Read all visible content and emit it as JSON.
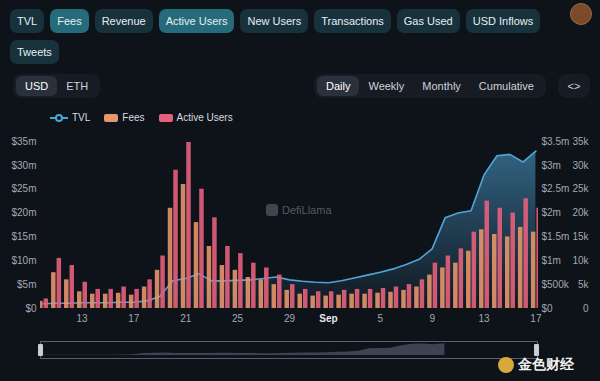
{
  "page": {
    "tabs": [
      {
        "label": "TVL",
        "active": false
      },
      {
        "label": "Fees",
        "active": true
      },
      {
        "label": "Revenue",
        "active": false
      },
      {
        "label": "Active Users",
        "active": true
      },
      {
        "label": "New Users",
        "active": false
      },
      {
        "label": "Transactions",
        "active": false
      },
      {
        "label": "Gas Used",
        "active": false
      },
      {
        "label": "USD Inflows",
        "active": false
      },
      {
        "label": "Tweets",
        "active": false
      }
    ],
    "currency": {
      "options": [
        "USD",
        "ETH"
      ],
      "selected": "USD"
    },
    "period": {
      "options": [
        "Daily",
        "Weekly",
        "Monthly",
        "Cumulative"
      ],
      "selected": "Daily"
    },
    "embed": "<>",
    "watermark": "DefiLlama",
    "source_watermark": "金色财经"
  },
  "chart_data": {
    "type": "combo",
    "legend": "top-left",
    "categories": [
      null,
      null,
      null,
      "13",
      null,
      null,
      null,
      "17",
      null,
      null,
      null,
      "21",
      null,
      null,
      null,
      "25",
      null,
      null,
      null,
      "29",
      null,
      null,
      "Sep",
      null,
      null,
      null,
      "5",
      null,
      null,
      null,
      "9",
      null,
      null,
      null,
      "13",
      null,
      null,
      null,
      "17"
    ],
    "ylim": [
      0,
      35000000
    ],
    "yticks": [
      {
        "value": 0,
        "label": "$0"
      },
      {
        "value": 5000000,
        "label": "$5m"
      },
      {
        "value": 10000000,
        "label": "$10m"
      },
      {
        "value": 15000000,
        "label": "$15m"
      },
      {
        "value": 20000000,
        "label": "$20m"
      },
      {
        "value": 25000000,
        "label": "$25m"
      },
      {
        "value": 30000000,
        "label": "$30m"
      },
      {
        "value": 35000000,
        "label": "$35m"
      }
    ],
    "y2lim": [
      0,
      3500000
    ],
    "y2ticks": [
      {
        "value": 0,
        "label": "$0"
      },
      {
        "value": 500000,
        "label": "$500k"
      },
      {
        "value": 1000000,
        "label": "$1m"
      },
      {
        "value": 1500000,
        "label": "$1.5m"
      },
      {
        "value": 2000000,
        "label": "$2m"
      },
      {
        "value": 2500000,
        "label": "$2.5m"
      },
      {
        "value": 3000000,
        "label": "$3m"
      },
      {
        "value": 3500000,
        "label": "$3.5m"
      }
    ],
    "y3lim": [
      0,
      35000
    ],
    "y3ticks": [
      0,
      {
        "value": 5000,
        "label": "5k"
      },
      {
        "value": 10000,
        "label": "10k"
      },
      {
        "value": 15000,
        "label": "15k"
      },
      {
        "value": 20000,
        "label": "20k"
      },
      {
        "value": 25000,
        "label": "25k"
      },
      {
        "value": 30000,
        "label": "30k"
      },
      {
        "value": 35000,
        "label": "35k"
      }
    ],
    "series": [
      {
        "name": "TVL",
        "type": "area",
        "color": "#4ea4d6",
        "values": [
          1000000,
          1100000,
          1100000,
          1200000,
          1200000,
          1200000,
          1300000,
          1300000,
          1600000,
          2500000,
          5800000,
          6300000,
          7300000,
          5800000,
          5800000,
          5900000,
          6000000,
          6300000,
          6600000,
          6000000,
          5700000,
          5500000,
          5400000,
          5800000,
          6400000,
          7000000,
          7600000,
          8300000,
          9200000,
          10300000,
          12500000,
          19000000,
          20000000,
          20500000,
          28000000,
          32000000,
          32300000,
          30700000,
          33000000
        ]
      },
      {
        "name": "Fees",
        "type": "bar",
        "axis": "y2",
        "color": "#e4966c",
        "values": [
          150000,
          750000,
          600000,
          350000,
          300000,
          300000,
          320000,
          280000,
          450000,
          800000,
          2100000,
          2600000,
          1800000,
          1300000,
          900000,
          800000,
          650000,
          600000,
          500000,
          380000,
          300000,
          260000,
          260000,
          280000,
          300000,
          300000,
          320000,
          340000,
          380000,
          450000,
          700000,
          850000,
          950000,
          1200000,
          1650000,
          1550000,
          1500000,
          1700000,
          1600000
        ]
      },
      {
        "name": "Active Users",
        "type": "bar",
        "axis": "y3",
        "color": "#e6617c",
        "values": [
          2000,
          10500,
          9000,
          5500,
          4000,
          4000,
          4500,
          4000,
          6000,
          11000,
          29000,
          34800,
          25000,
          19000,
          13000,
          11500,
          9500,
          8500,
          7000,
          5000,
          4000,
          3500,
          3500,
          3800,
          4000,
          4000,
          4200,
          4500,
          5000,
          6000,
          9500,
          11000,
          12500,
          16000,
          22500,
          21000,
          20000,
          23000,
          21000
        ]
      }
    ]
  }
}
